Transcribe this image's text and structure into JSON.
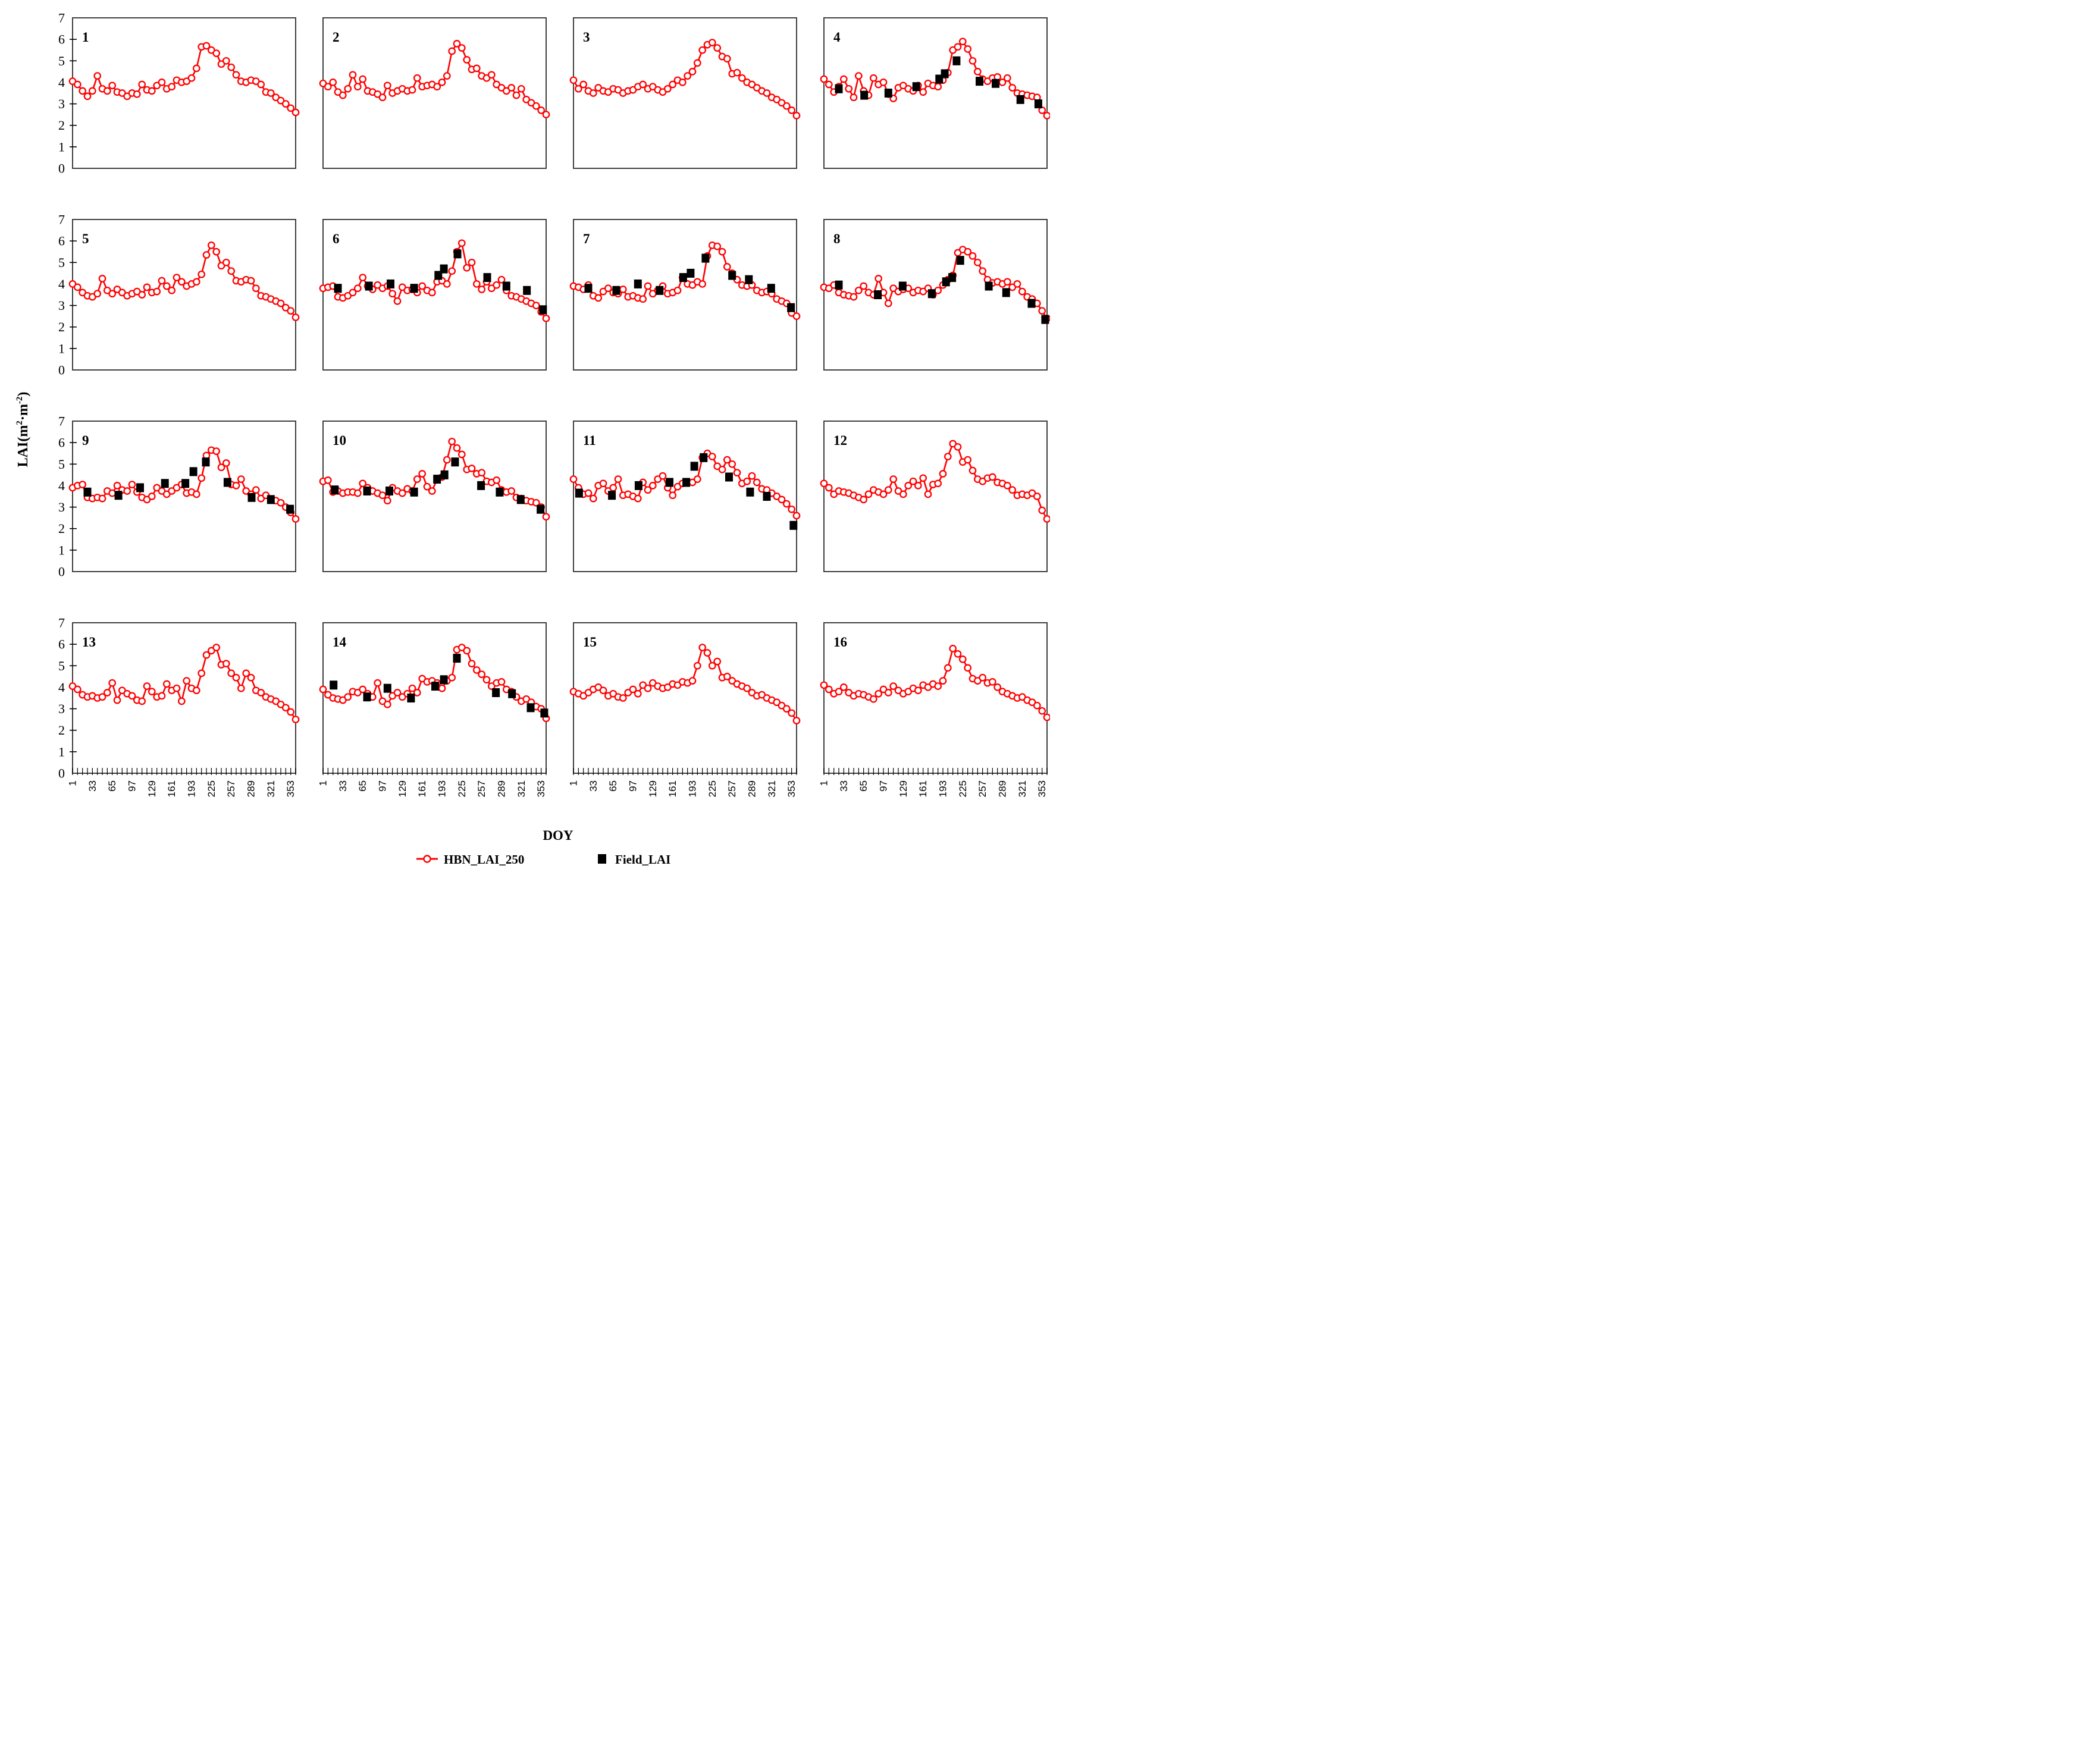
{
  "figure": {
    "xlabel": "DOY",
    "ylabel": {
      "prefix": "LAI(m",
      "sup1": "2",
      "mid": "·m",
      "sup2": "-2",
      "suffix": ")"
    },
    "legend": [
      {
        "label": "HBN_LAI_250",
        "marker": "red-line-open-circle",
        "color": "#ff0000"
      },
      {
        "label": "Field_LAI",
        "marker": "black-filled-square",
        "color": "#000000"
      }
    ],
    "axes": {
      "ylim": [
        0,
        7
      ],
      "yticks": [
        0,
        1,
        2,
        3,
        4,
        5,
        6,
        7
      ],
      "xticks": [
        1,
        33,
        65,
        97,
        129,
        161,
        193,
        225,
        257,
        289,
        321,
        353
      ],
      "x_range": [
        1,
        361
      ],
      "x_minor_step": 8,
      "grid": false
    },
    "colors": {
      "line": "#ff0000",
      "marker_fill": "#ffffff",
      "field": "#000000",
      "frame": "#3f3f3f"
    }
  },
  "chart_data": {
    "type": "line",
    "series_names": [
      "HBN_LAI_250",
      "Field_LAI"
    ],
    "doy_start": 1,
    "doy_step": 8,
    "n_points": 46,
    "panels": [
      {
        "panel": "1",
        "hbn_y": [
          4.05,
          3.9,
          3.6,
          3.35,
          3.6,
          4.3,
          3.7,
          3.6,
          3.85,
          3.55,
          3.5,
          3.35,
          3.5,
          3.45,
          3.9,
          3.65,
          3.6,
          3.85,
          4.0,
          3.7,
          3.8,
          4.1,
          4.0,
          4.05,
          4.2,
          4.65,
          5.65,
          5.7,
          5.5,
          5.35,
          4.85,
          5.0,
          4.7,
          4.35,
          4.05,
          4.0,
          4.1,
          4.05,
          3.9,
          3.55,
          3.5,
          3.3,
          3.15,
          3.0,
          2.8,
          2.6
        ],
        "field_doy": [],
        "field_y": []
      },
      {
        "panel": "2",
        "hbn_y": [
          3.95,
          3.8,
          4.0,
          3.55,
          3.4,
          3.7,
          4.35,
          3.8,
          4.15,
          3.6,
          3.55,
          3.45,
          3.3,
          3.85,
          3.5,
          3.6,
          3.7,
          3.6,
          3.65,
          4.2,
          3.8,
          3.85,
          3.9,
          3.8,
          4.0,
          4.3,
          5.45,
          5.8,
          5.6,
          5.05,
          4.6,
          4.65,
          4.3,
          4.2,
          4.35,
          3.9,
          3.75,
          3.6,
          3.75,
          3.4,
          3.7,
          3.2,
          3.05,
          2.9,
          2.7,
          2.5
        ],
        "field_doy": [],
        "field_y": []
      },
      {
        "panel": "3",
        "hbn_y": [
          4.1,
          3.7,
          3.9,
          3.6,
          3.5,
          3.75,
          3.6,
          3.55,
          3.7,
          3.65,
          3.5,
          3.6,
          3.65,
          3.8,
          3.9,
          3.7,
          3.8,
          3.65,
          3.55,
          3.7,
          3.9,
          4.1,
          4.0,
          4.3,
          4.5,
          4.9,
          5.5,
          5.75,
          5.85,
          5.6,
          5.2,
          5.1,
          4.4,
          4.45,
          4.2,
          4.0,
          3.9,
          3.75,
          3.6,
          3.5,
          3.3,
          3.2,
          3.05,
          2.9,
          2.7,
          2.45
        ],
        "field_doy": [],
        "field_y": []
      },
      {
        "panel": "4",
        "hbn_y": [
          4.15,
          3.9,
          3.55,
          3.8,
          4.15,
          3.7,
          3.3,
          4.3,
          3.6,
          3.4,
          4.2,
          3.9,
          4.0,
          3.45,
          3.25,
          3.75,
          3.85,
          3.7,
          3.6,
          3.85,
          3.55,
          3.95,
          3.85,
          3.8,
          4.1,
          4.45,
          5.5,
          5.65,
          5.9,
          5.55,
          5.0,
          4.5,
          4.15,
          4.05,
          4.2,
          4.25,
          4.0,
          4.2,
          3.75,
          3.5,
          3.45,
          3.4,
          3.35,
          3.3,
          2.7,
          2.45
        ],
        "field_doy": [
          25,
          66,
          105,
          150,
          187,
          196,
          215,
          252,
          278,
          318,
          347
        ],
        "field_y": [
          3.7,
          3.4,
          3.5,
          3.8,
          4.15,
          4.4,
          5.0,
          4.05,
          3.95,
          3.2,
          3.0
        ]
      },
      {
        "panel": "5",
        "hbn_y": [
          4.0,
          3.85,
          3.6,
          3.45,
          3.4,
          3.55,
          4.25,
          3.7,
          3.55,
          3.75,
          3.6,
          3.45,
          3.55,
          3.65,
          3.5,
          3.85,
          3.6,
          3.65,
          4.15,
          3.9,
          3.7,
          4.3,
          4.1,
          3.9,
          4.0,
          4.1,
          4.45,
          5.35,
          5.8,
          5.5,
          4.85,
          5.0,
          4.6,
          4.15,
          4.1,
          4.2,
          4.15,
          3.8,
          3.45,
          3.4,
          3.3,
          3.2,
          3.1,
          2.9,
          2.75,
          2.45
        ],
        "field_doy": [],
        "field_y": []
      },
      {
        "panel": "6",
        "hbn_y": [
          3.8,
          3.85,
          3.9,
          3.4,
          3.35,
          3.45,
          3.6,
          3.8,
          4.3,
          3.9,
          3.75,
          3.95,
          3.8,
          3.9,
          3.55,
          3.2,
          3.85,
          3.7,
          3.75,
          3.6,
          3.9,
          3.7,
          3.6,
          4.1,
          4.15,
          4.0,
          4.6,
          5.5,
          5.9,
          4.75,
          5.0,
          4.0,
          3.75,
          4.1,
          3.8,
          3.95,
          4.2,
          3.7,
          3.45,
          3.4,
          3.3,
          3.2,
          3.1,
          3.0,
          2.7,
          2.4
        ],
        "field_doy": [
          25,
          75,
          110,
          148,
          187,
          196,
          218,
          266,
          297,
          330,
          356
        ],
        "field_y": [
          3.8,
          3.9,
          4.0,
          3.8,
          4.4,
          4.7,
          5.4,
          4.3,
          3.9,
          3.7,
          2.8
        ]
      },
      {
        "panel": "7",
        "hbn_y": [
          3.9,
          3.85,
          3.75,
          3.95,
          3.45,
          3.35,
          3.65,
          3.8,
          3.6,
          3.55,
          3.75,
          3.4,
          3.45,
          3.35,
          3.3,
          3.9,
          3.55,
          3.7,
          3.9,
          3.55,
          3.6,
          3.7,
          4.3,
          4.0,
          3.95,
          4.1,
          4.0,
          5.3,
          5.8,
          5.75,
          5.5,
          4.8,
          4.5,
          4.2,
          3.95,
          3.9,
          3.95,
          3.7,
          3.6,
          3.65,
          3.55,
          3.3,
          3.2,
          3.1,
          2.65,
          2.5
        ],
        "field_doy": [
          25,
          70,
          105,
          140,
          178,
          190,
          214,
          257,
          284,
          320,
          352
        ],
        "field_y": [
          3.8,
          3.7,
          4.0,
          3.7,
          4.3,
          4.5,
          5.2,
          4.4,
          4.2,
          3.8,
          2.9
        ]
      },
      {
        "panel": "8",
        "hbn_y": [
          3.85,
          3.8,
          3.95,
          3.6,
          3.5,
          3.45,
          3.4,
          3.7,
          3.9,
          3.6,
          3.5,
          4.25,
          3.6,
          3.1,
          3.8,
          3.65,
          3.75,
          3.8,
          3.6,
          3.7,
          3.65,
          3.8,
          3.5,
          3.7,
          3.95,
          4.2,
          4.4,
          5.45,
          5.6,
          5.5,
          5.3,
          5.0,
          4.6,
          4.2,
          4.05,
          4.1,
          4.0,
          4.1,
          3.85,
          4.0,
          3.65,
          3.4,
          3.3,
          3.1,
          2.75,
          2.4
        ],
        "field_doy": [
          25,
          88,
          128,
          175,
          198,
          208,
          221,
          267,
          295,
          336,
          358
        ],
        "field_y": [
          3.95,
          3.5,
          3.9,
          3.55,
          4.1,
          4.3,
          5.1,
          3.9,
          3.6,
          3.1,
          2.35
        ]
      },
      {
        "panel": "9",
        "hbn_y": [
          3.9,
          4.0,
          4.05,
          3.45,
          3.4,
          3.45,
          3.4,
          3.75,
          3.65,
          4.0,
          3.8,
          3.75,
          4.05,
          3.7,
          3.45,
          3.35,
          3.5,
          3.9,
          3.75,
          3.6,
          3.75,
          3.9,
          4.05,
          3.65,
          3.7,
          3.6,
          4.35,
          5.4,
          5.65,
          5.6,
          4.85,
          5.05,
          4.05,
          4.0,
          4.3,
          3.75,
          3.6,
          3.8,
          3.4,
          3.55,
          3.35,
          3.3,
          3.2,
          3.0,
          2.75,
          2.45
        ],
        "field_doy": [
          25,
          75,
          110,
          150,
          183,
          196,
          216,
          251,
          290,
          321,
          352
        ],
        "field_y": [
          3.7,
          3.55,
          3.9,
          4.1,
          4.1,
          4.65,
          5.1,
          4.15,
          3.45,
          3.35,
          2.9
        ]
      },
      {
        "panel": "10",
        "hbn_y": [
          4.2,
          4.25,
          3.7,
          3.75,
          3.65,
          3.7,
          3.7,
          3.65,
          4.1,
          3.9,
          3.75,
          3.65,
          3.55,
          3.3,
          3.9,
          3.75,
          3.65,
          3.85,
          3.75,
          4.3,
          4.55,
          3.95,
          3.75,
          4.3,
          4.4,
          5.2,
          6.05,
          5.75,
          5.45,
          4.75,
          4.8,
          4.55,
          4.6,
          4.2,
          4.15,
          4.25,
          3.8,
          3.7,
          3.75,
          3.45,
          3.4,
          3.3,
          3.25,
          3.2,
          3.0,
          2.55
        ],
        "field_doy": [
          20,
          72,
          108,
          148,
          185,
          197,
          214,
          256,
          286,
          320,
          352
        ],
        "field_y": [
          3.8,
          3.75,
          3.75,
          3.7,
          4.3,
          4.5,
          5.1,
          4.0,
          3.7,
          3.35,
          2.9
        ]
      },
      {
        "panel": "11",
        "hbn_y": [
          4.3,
          3.9,
          3.6,
          3.65,
          3.4,
          4.0,
          4.1,
          3.75,
          3.9,
          4.3,
          3.55,
          3.6,
          3.5,
          3.4,
          4.15,
          3.8,
          4.0,
          4.3,
          4.45,
          3.9,
          3.55,
          3.95,
          4.1,
          4.15,
          4.15,
          4.3,
          5.3,
          5.5,
          5.35,
          4.9,
          4.75,
          5.2,
          5.0,
          4.6,
          4.1,
          4.2,
          4.45,
          4.15,
          3.85,
          3.8,
          3.65,
          3.5,
          3.35,
          3.15,
          2.9,
          2.6
        ],
        "field_doy": [
          10,
          63,
          106,
          156,
          183,
          196,
          211,
          252,
          286,
          313,
          356
        ],
        "field_y": [
          3.65,
          3.55,
          4.0,
          4.15,
          4.15,
          4.9,
          5.3,
          4.4,
          3.7,
          3.5,
          2.15
        ]
      },
      {
        "panel": "12",
        "hbn_y": [
          4.1,
          3.9,
          3.6,
          3.75,
          3.7,
          3.65,
          3.55,
          3.45,
          3.35,
          3.6,
          3.8,
          3.7,
          3.6,
          3.8,
          4.3,
          3.75,
          3.6,
          4.0,
          4.2,
          4.0,
          4.35,
          3.6,
          4.05,
          4.1,
          4.55,
          5.35,
          5.95,
          5.8,
          5.1,
          5.2,
          4.7,
          4.3,
          4.2,
          4.35,
          4.4,
          4.15,
          4.1,
          4.0,
          3.8,
          3.55,
          3.6,
          3.55,
          3.65,
          3.5,
          2.85,
          2.45
        ],
        "field_doy": [],
        "field_y": []
      },
      {
        "panel": "13",
        "hbn_y": [
          4.05,
          3.9,
          3.65,
          3.55,
          3.6,
          3.5,
          3.55,
          3.75,
          4.2,
          3.4,
          3.85,
          3.7,
          3.6,
          3.4,
          3.35,
          4.05,
          3.8,
          3.55,
          3.6,
          4.15,
          3.85,
          3.95,
          3.35,
          4.3,
          3.95,
          3.85,
          4.65,
          5.5,
          5.7,
          5.85,
          5.05,
          5.1,
          4.65,
          4.45,
          3.95,
          4.65,
          4.45,
          3.85,
          3.75,
          3.55,
          3.45,
          3.35,
          3.2,
          3.05,
          2.85,
          2.5
        ],
        "field_doy": [],
        "field_y": []
      },
      {
        "panel": "14",
        "hbn_y": [
          3.9,
          3.65,
          3.5,
          3.45,
          3.4,
          3.55,
          3.8,
          3.75,
          3.9,
          3.7,
          3.55,
          4.2,
          3.35,
          3.2,
          3.6,
          3.75,
          3.55,
          3.7,
          3.95,
          3.75,
          4.4,
          4.25,
          4.3,
          4.2,
          3.95,
          4.3,
          4.45,
          5.75,
          5.85,
          5.7,
          5.1,
          4.8,
          4.6,
          4.35,
          4.05,
          4.2,
          4.25,
          3.9,
          3.8,
          3.55,
          3.35,
          3.45,
          3.3,
          3.1,
          3.0,
          2.55
        ],
        "field_doy": [
          18,
          72,
          105,
          143,
          182,
          196,
          217,
          280,
          306,
          336,
          358
        ],
        "field_y": [
          4.1,
          3.55,
          3.95,
          3.5,
          4.05,
          4.35,
          5.35,
          3.75,
          3.7,
          3.05,
          2.8
        ]
      },
      {
        "panel": "15",
        "hbn_y": [
          3.8,
          3.7,
          3.6,
          3.75,
          3.9,
          4.0,
          3.85,
          3.6,
          3.7,
          3.55,
          3.5,
          3.75,
          3.9,
          3.7,
          4.1,
          3.95,
          4.2,
          4.05,
          3.95,
          4.0,
          4.15,
          4.1,
          4.25,
          4.2,
          4.3,
          5.0,
          5.85,
          5.6,
          5.0,
          5.2,
          4.45,
          4.5,
          4.3,
          4.15,
          4.05,
          3.95,
          3.75,
          3.6,
          3.65,
          3.5,
          3.4,
          3.3,
          3.15,
          3.0,
          2.8,
          2.45
        ],
        "field_doy": [],
        "field_y": []
      },
      {
        "panel": "16",
        "hbn_y": [
          4.1,
          3.9,
          3.7,
          3.8,
          4.0,
          3.75,
          3.6,
          3.7,
          3.65,
          3.55,
          3.45,
          3.7,
          3.9,
          3.75,
          4.05,
          3.85,
          3.7,
          3.8,
          3.95,
          3.85,
          4.1,
          4.0,
          4.15,
          4.05,
          4.3,
          4.9,
          5.8,
          5.55,
          5.3,
          4.9,
          4.4,
          4.3,
          4.45,
          4.2,
          4.25,
          4.0,
          3.8,
          3.7,
          3.6,
          3.5,
          3.55,
          3.4,
          3.3,
          3.15,
          2.9,
          2.6
        ],
        "field_doy": [],
        "field_y": []
      }
    ]
  }
}
